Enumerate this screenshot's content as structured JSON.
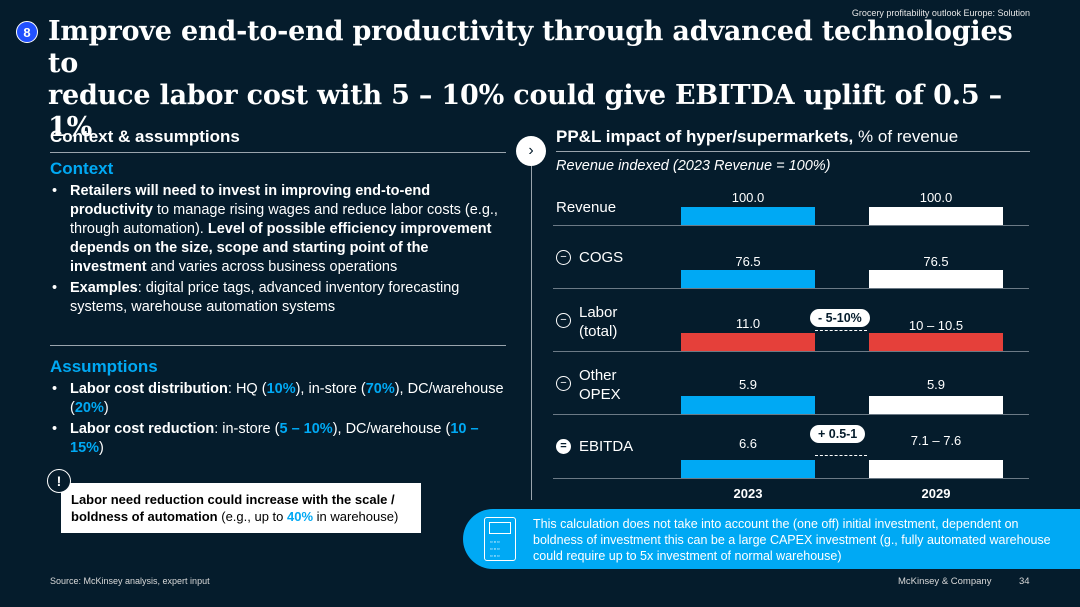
{
  "header": {
    "label": "Grocery profitability outlook Europe: Solution",
    "badge": "8",
    "title_line1": "Improve end-to-end productivity through advanced technologies to",
    "title_line2": "reduce labor cost with 5 – 10% could give EBITDA uplift of 0.5 – 1%"
  },
  "left": {
    "section_title": "Context & assumptions",
    "context_heading": "Context",
    "context_bullets": [
      {
        "b1": "Retailers will need to invest in improving end-to-end productivity",
        "t1": " to manage rising wages  and reduce labor costs (e.g., through automation). ",
        "b2": "Level of possible efficiency improvement depends on the size, scope and starting point of the investment",
        "t2": " and varies across business operations"
      },
      {
        "b1": "Examples",
        "t1": ": digital price tags, advanced inventory forecasting systems, warehouse automation systems"
      }
    ],
    "assumptions_heading": "Assumptions",
    "assumption1": {
      "b": "Labor cost distribution",
      "t1": ": HQ (",
      "h1": "10%",
      "t2": "), in-store (",
      "h2": "70%",
      "t3": "), DC/warehouse (",
      "h3": "20%",
      "t4": ")"
    },
    "assumption2": {
      "b": "Labor cost reduction",
      "t1": ": in-store (",
      "h1": "5 – 10%",
      "t2": "), DC/warehouse (",
      "h2": "10 – 15%",
      "t3": ")"
    },
    "warn_icon": "!",
    "note": {
      "b": "Labor need reduction could increase with the scale / boldness of automation",
      "t1": " (e.g., up to ",
      "h": "40%",
      "t2": " in warehouse)"
    }
  },
  "right": {
    "title_bold": "PP&L impact of hyper/supermarkets,",
    "title_rest": " % of revenue",
    "subtitle": "Revenue indexed (2023 Revenue = 100%)",
    "arrow_glyph": "›"
  },
  "chart_data": {
    "type": "bar",
    "title": "PP&L impact of hyper/supermarkets, % of revenue",
    "subtitle": "Revenue indexed (2023 Revenue = 100%)",
    "years": [
      "2023",
      "2029"
    ],
    "rows": [
      {
        "label": "Revenue",
        "icon": "",
        "values": [
          100.0,
          100.0
        ],
        "labels": [
          "100.0",
          "100.0"
        ]
      },
      {
        "label": "COGS",
        "icon": "−",
        "values": [
          76.5,
          76.5
        ],
        "labels": [
          "76.5",
          "76.5"
        ]
      },
      {
        "label": "Labor (total)",
        "label_line1": "Labor",
        "label_line2": "(total)",
        "icon": "−",
        "values": [
          11.0,
          10.25
        ],
        "labels": [
          "11.0",
          "10 – 10.5"
        ]
      },
      {
        "label": "Other OPEX",
        "label_line1": "Other",
        "label_line2": "OPEX",
        "icon": "−",
        "values": [
          5.9,
          5.9
        ],
        "labels": [
          "5.9",
          "5.9"
        ]
      },
      {
        "label": "EBITDA",
        "icon": "=",
        "values": [
          6.6,
          7.35
        ],
        "labels": [
          "6.6",
          "7.1 – 7.6"
        ]
      }
    ],
    "annotations": [
      {
        "row": "Labor (total)",
        "text": "- 5-10%"
      },
      {
        "row": "EBITDA",
        "text": "+ 0.5-1"
      }
    ],
    "colors": {
      "y2023": "#00a9f4",
      "y2029": "#ffffff",
      "labor": "#e5403a"
    }
  },
  "callout": {
    "text": "This calculation does not take into account the (one off) initial investment, dependent on boldness of investment this can be a large CAPEX investment (g., fully automated warehouse could require up to 5x investment of normal warehouse)",
    "icon": "calculator-icon",
    "keys": "▫▫▫ ▫▫▫ ▫▫▫"
  },
  "footer": {
    "source": "Source: McKinsey analysis, expert input",
    "company": "McKinsey & Company",
    "page": "34"
  }
}
